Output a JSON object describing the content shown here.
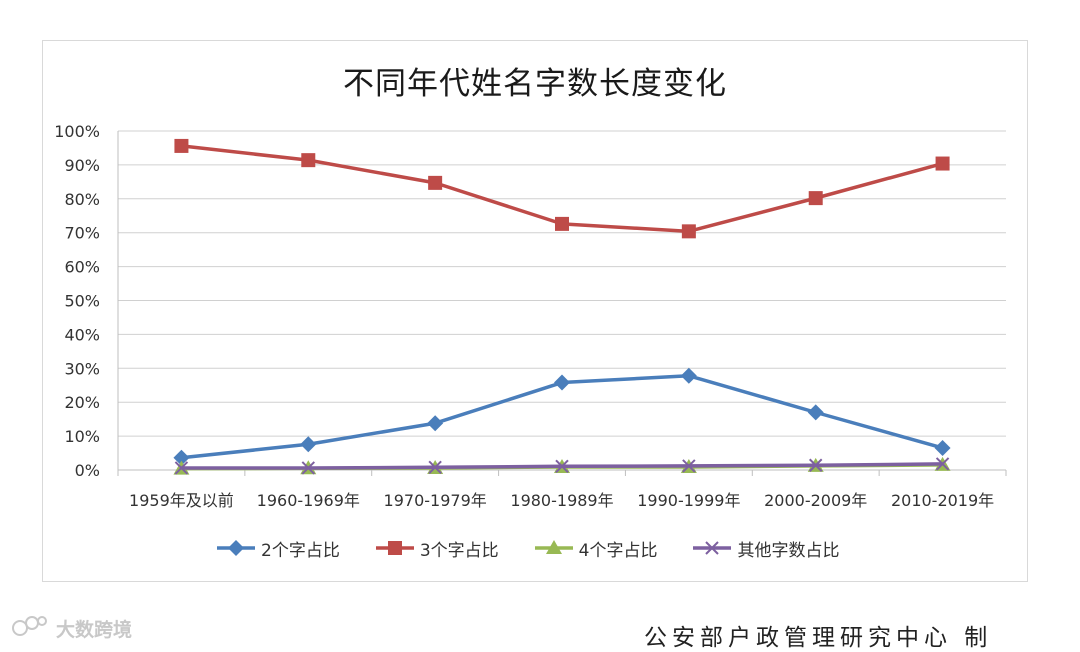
{
  "title": "不同年代姓名字数长度变化",
  "credit": "公安部户政管理研究中心 制",
  "watermark": "大数跨境",
  "chart_data": {
    "type": "line",
    "title": "不同年代姓名字数长度变化",
    "categories": [
      "1959年及以前",
      "1960-1969年",
      "1970-1979年",
      "1980-1989年",
      "1990-1999年",
      "2000-2009年",
      "2010-2019年"
    ],
    "yticks": [
      "0%",
      "10%",
      "20%",
      "30%",
      "40%",
      "50%",
      "60%",
      "70%",
      "80%",
      "90%",
      "100%"
    ],
    "ylim": [
      0,
      100
    ],
    "unit": "%",
    "grid": true,
    "legend_position": "bottom",
    "series": [
      {
        "name": "2个字占比",
        "color": "#4a7ebb",
        "marker": "diamond",
        "values": [
          3.6,
          7.6,
          13.8,
          25.8,
          27.8,
          17.0,
          6.5
        ]
      },
      {
        "name": "3个字占比",
        "color": "#be4b48",
        "marker": "square",
        "values": [
          95.6,
          91.4,
          84.7,
          72.6,
          70.4,
          80.2,
          90.4
        ]
      },
      {
        "name": "4个字占比",
        "color": "#98b954",
        "marker": "triangle",
        "values": [
          0.4,
          0.5,
          0.6,
          0.9,
          0.9,
          1.2,
          1.5
        ]
      },
      {
        "name": "其他字数占比",
        "color": "#7d60a0",
        "marker": "x",
        "values": [
          0.6,
          0.6,
          0.8,
          1.1,
          1.2,
          1.4,
          1.8
        ]
      }
    ]
  }
}
